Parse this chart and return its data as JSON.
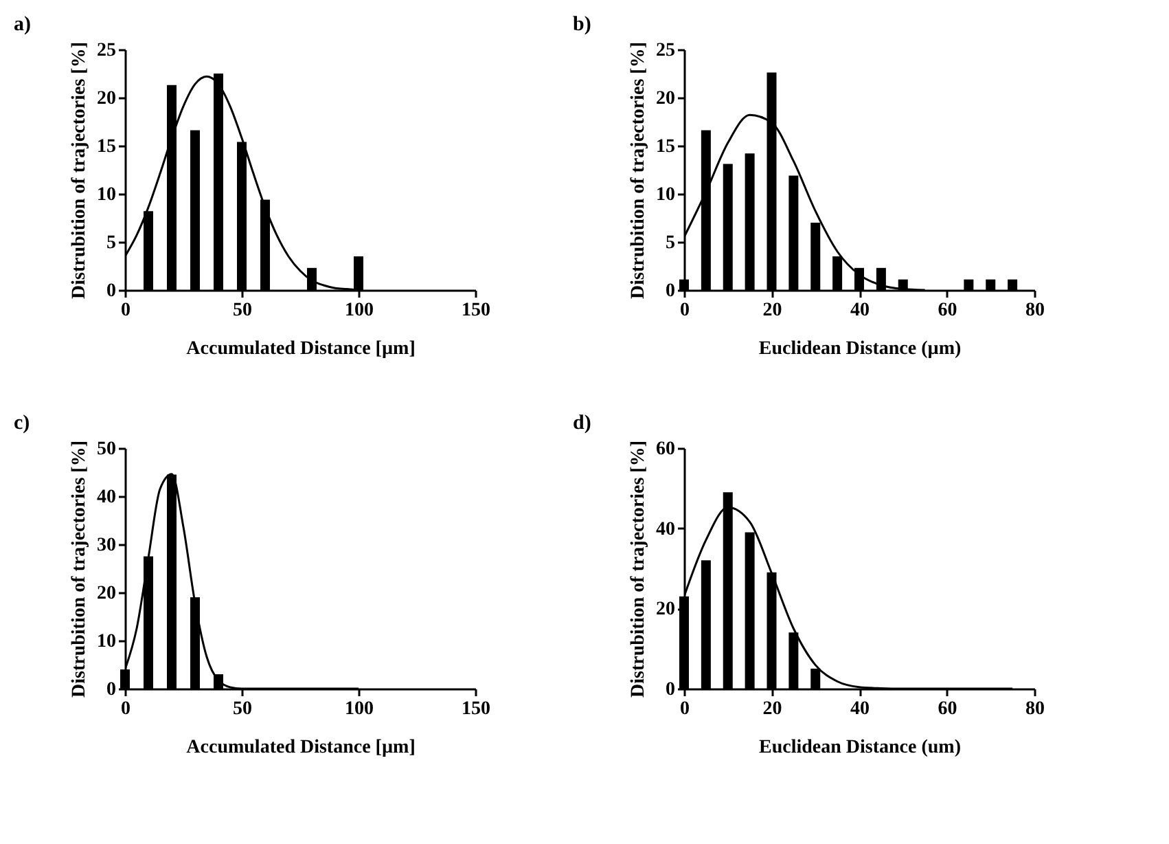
{
  "chart_data": [
    {
      "type": "bar",
      "title": "a)",
      "xlabel": "Accumulated Distance [µm]",
      "ylabel": "Distrubition of trajectories [%]",
      "xlim": [
        0,
        150
      ],
      "xticks": [
        0,
        50,
        100,
        150
      ],
      "ylim": [
        0,
        25
      ],
      "yticks": [
        0,
        5,
        10,
        15,
        20,
        25
      ],
      "series": [
        {
          "color": "#000000",
          "x": [
            10,
            20,
            30,
            40,
            50,
            60,
            80,
            100
          ],
          "values": [
            8.2,
            21.3,
            16.6,
            22.5,
            15.4,
            9.4,
            2.3,
            3.5
          ]
        },
        {
          "type": "line",
          "color": "#000000",
          "x": [
            0,
            5,
            10,
            15,
            20,
            25,
            30,
            35,
            40,
            45,
            50,
            55,
            60,
            65,
            70,
            75,
            80,
            85,
            90,
            95,
            100
          ],
          "values": [
            3.5,
            5.7,
            8.6,
            12.1,
            15.8,
            19.1,
            21.4,
            22.2,
            21.4,
            19.1,
            15.8,
            12.1,
            8.6,
            5.7,
            3.5,
            2.0,
            1.0,
            0.5,
            0.2,
            0.1,
            0.0
          ]
        }
      ]
    },
    {
      "type": "bar",
      "title": "b)",
      "xlabel": "Euclidean Distance (µm)",
      "ylabel": "Distrubition of trajectories [%]",
      "xlim": [
        0,
        80
      ],
      "xticks": [
        0,
        20,
        40,
        60,
        80
      ],
      "ylim": [
        0,
        25
      ],
      "yticks": [
        0,
        5,
        10,
        15,
        20,
        25
      ],
      "series": [
        {
          "color": "#000000",
          "x": [
            0,
            5,
            10,
            15,
            20,
            25,
            30,
            35,
            40,
            45,
            50,
            65,
            70,
            75
          ],
          "values": [
            1.1,
            16.6,
            13.1,
            14.2,
            22.6,
            11.9,
            7.0,
            3.5,
            2.3,
            2.3,
            1.1,
            1.1,
            1.1,
            1.1
          ]
        },
        {
          "type": "line",
          "color": "#000000",
          "x": [
            0,
            5,
            10,
            15,
            20,
            25,
            30,
            35,
            40,
            45,
            50,
            55
          ],
          "values": [
            5.5,
            10.2,
            15.3,
            18.2,
            17.4,
            13.4,
            8.2,
            4.0,
            1.6,
            0.5,
            0.1,
            0.0
          ]
        }
      ]
    },
    {
      "type": "bar",
      "title": "c)",
      "xlabel": "Accumulated Distance [µm]",
      "ylabel": "Distrubition of trajectories [%]",
      "xlim": [
        0,
        150
      ],
      "xticks": [
        0,
        50,
        100,
        150
      ],
      "ylim": [
        0,
        50
      ],
      "yticks": [
        0,
        10,
        20,
        30,
        40,
        50
      ],
      "series": [
        {
          "color": "#000000",
          "x": [
            0,
            10,
            20,
            30,
            40
          ],
          "values": [
            4,
            27.5,
            44.5,
            19,
            3
          ]
        },
        {
          "type": "line",
          "color": "#000000",
          "x": [
            0,
            5,
            10,
            15,
            20,
            25,
            30,
            35,
            40,
            45,
            50,
            60,
            80,
            100
          ],
          "values": [
            4.0,
            12.5,
            27.2,
            41.5,
            44.6,
            33.6,
            17.8,
            6.6,
            1.7,
            0.3,
            0.0,
            0.0,
            0.0,
            0.0
          ]
        }
      ]
    },
    {
      "type": "bar",
      "title": "d)",
      "xlabel": "Euclidean Distance (um)",
      "ylabel": "Distrubition of trajectories [%]",
      "xlim": [
        0,
        80
      ],
      "xticks": [
        0,
        20,
        40,
        60,
        80
      ],
      "ylim": [
        0,
        60
      ],
      "yticks": [
        0,
        20,
        40,
        60
      ],
      "series": [
        {
          "color": "#000000",
          "x": [
            0,
            5,
            10,
            15,
            20,
            25,
            30
          ],
          "values": [
            23,
            32,
            49,
            39,
            29,
            14,
            5
          ]
        },
        {
          "type": "line",
          "color": "#000000",
          "x": [
            0,
            5,
            10,
            15,
            20,
            25,
            30,
            35,
            40,
            45,
            50,
            60,
            75
          ],
          "values": [
            23,
            37.1,
            45.2,
            41.6,
            28.8,
            15.0,
            5.9,
            1.8,
            0.4,
            0.1,
            0.0,
            0.0,
            0.0
          ]
        }
      ]
    }
  ]
}
